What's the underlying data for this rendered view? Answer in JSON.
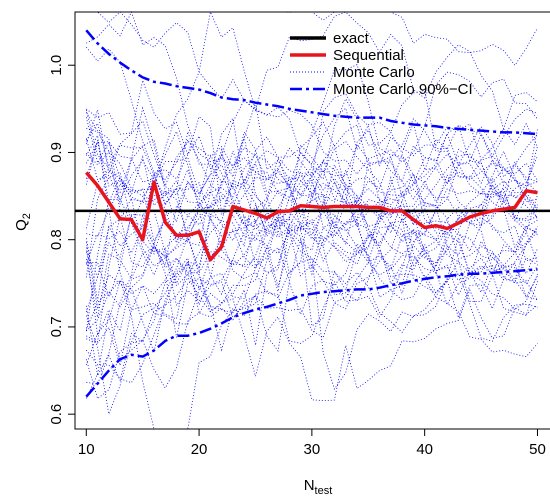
{
  "chart_data": {
    "type": "line",
    "xlabel": "N",
    "xlabel_sub": "test",
    "ylabel": "Q",
    "ylabel_sub": "2",
    "xlim": [
      9,
      51.2
    ],
    "ylim": [
      0.583,
      1.061
    ],
    "xticks": [
      10,
      20,
      30,
      40,
      50
    ],
    "yticks": [
      0.6,
      0.7,
      0.8,
      0.9,
      1.0
    ],
    "ytick_labels": [
      "0.6",
      "0.7",
      "0.8",
      "0.9",
      "1.0"
    ],
    "legend_position": "top-right",
    "colors": {
      "exact": "#000000",
      "sequential": "#e8141c",
      "monte_carlo": "#0000ff",
      "ci": "#0000ff"
    },
    "series": [
      {
        "name": "exact",
        "style": "solid",
        "y_constant": 0.833
      },
      {
        "name": "Sequential",
        "style": "solid",
        "x": [
          10,
          11,
          12,
          13,
          14,
          15,
          16,
          17,
          18,
          19,
          20,
          21,
          22,
          23,
          24,
          25,
          26,
          27,
          28,
          29,
          30,
          31,
          32,
          33,
          34,
          35,
          36,
          37,
          38,
          39,
          40,
          41,
          42,
          43,
          44,
          45,
          46,
          47,
          48,
          49,
          50
        ],
        "y": [
          0.877,
          0.862,
          0.843,
          0.824,
          0.823,
          0.8,
          0.866,
          0.82,
          0.805,
          0.805,
          0.809,
          0.777,
          0.792,
          0.838,
          0.834,
          0.83,
          0.825,
          0.832,
          0.833,
          0.839,
          0.838,
          0.837,
          0.838,
          0.838,
          0.838,
          0.837,
          0.837,
          0.833,
          0.833,
          0.823,
          0.814,
          0.816,
          0.813,
          0.819,
          0.826,
          0.83,
          0.833,
          0.835,
          0.837,
          0.856,
          0.854
        ]
      },
      {
        "name": "Monte Carlo 90%−CI",
        "style": "dashdot",
        "x": [
          10,
          11,
          12,
          13,
          14,
          15,
          16,
          17,
          18,
          19,
          20,
          21,
          22,
          23,
          24,
          25,
          26,
          27,
          28,
          29,
          30,
          31,
          32,
          33,
          34,
          35,
          36,
          37,
          38,
          39,
          40,
          41,
          42,
          43,
          44,
          45,
          46,
          47,
          48,
          49,
          50
        ],
        "y_upper": [
          1.04,
          1.025,
          1.013,
          1.003,
          0.994,
          0.986,
          0.981,
          0.979,
          0.976,
          0.974,
          0.972,
          0.968,
          0.963,
          0.961,
          0.96,
          0.957,
          0.955,
          0.953,
          0.95,
          0.948,
          0.946,
          0.944,
          0.942,
          0.941,
          0.94,
          0.94,
          0.94,
          0.936,
          0.934,
          0.932,
          0.931,
          0.93,
          0.928,
          0.927,
          0.926,
          0.925,
          0.924,
          0.923,
          0.923,
          0.922,
          0.921
        ],
        "y_lower": [
          0.62,
          0.635,
          0.65,
          0.663,
          0.668,
          0.666,
          0.673,
          0.684,
          0.69,
          0.69,
          0.693,
          0.698,
          0.704,
          0.711,
          0.716,
          0.72,
          0.723,
          0.727,
          0.731,
          0.736,
          0.738,
          0.74,
          0.741,
          0.742,
          0.743,
          0.743,
          0.745,
          0.748,
          0.75,
          0.753,
          0.755,
          0.757,
          0.758,
          0.76,
          0.761,
          0.761,
          0.762,
          0.763,
          0.764,
          0.765,
          0.766
        ]
      }
    ],
    "monte_carlo_sample_count": 40,
    "legend": [
      {
        "label": "exact",
        "style": "solid-black"
      },
      {
        "label": "Sequential",
        "style": "solid-red"
      },
      {
        "label": "Monte Carlo",
        "style": "dotted-blue"
      },
      {
        "label": "Monte Carlo 90%−CI",
        "style": "dashdot-blue"
      }
    ]
  }
}
